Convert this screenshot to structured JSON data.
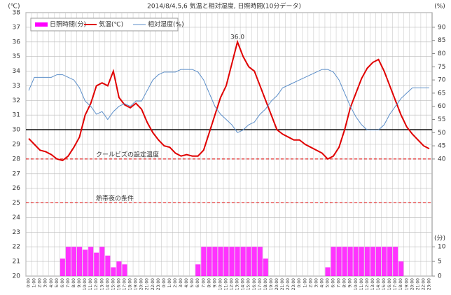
{
  "chart_data": {
    "type": "line",
    "title": "2014/8/4,5,6 気温と相対湿度, 日照時間(10分データ)",
    "y_label": "(℃)",
    "y2_label": "(%)",
    "y3_label": "(分)",
    "categories": [
      "0:00",
      "1:00",
      "2:00",
      "3:00",
      "4:00",
      "5:00",
      "6:00",
      "7:00",
      "8:00",
      "9:00",
      "10:00",
      "11:00",
      "12:00",
      "13:00",
      "14:00",
      "15:00",
      "16:00",
      "17:00",
      "18:00",
      "19:00",
      "20:00",
      "21:00",
      "22:00",
      "23:00",
      "0:00",
      "1:00",
      "2:00",
      "3:00",
      "4:00",
      "5:00",
      "6:00",
      "7:00",
      "8:00",
      "9:00",
      "10:00",
      "11:00",
      "12:00",
      "13:00",
      "14:00",
      "15:00",
      "16:00",
      "17:00",
      "18:00",
      "19:00",
      "20:00",
      "21:00",
      "22:00",
      "23:00",
      "0:00",
      "1:00",
      "2:00",
      "3:00",
      "4:00",
      "5:00",
      "6:00",
      "7:00",
      "8:00",
      "9:00",
      "10:00",
      "11:00",
      "12:00",
      "13:00",
      "14:00",
      "15:00",
      "16:00",
      "17:00",
      "18:00",
      "19:00",
      "20:00",
      "21:00",
      "22:00",
      "23:00"
    ],
    "series": [
      {
        "name": "日照時間(分)",
        "color": "#ff00ff",
        "axis": "y3",
        "kind": "bar",
        "values": [
          0,
          0,
          0,
          0,
          0,
          0,
          6,
          10,
          10,
          10,
          9,
          10,
          8,
          10,
          7,
          3,
          5,
          4,
          0,
          0,
          0,
          0,
          0,
          0,
          0,
          0,
          0,
          0,
          0,
          0,
          4,
          10,
          10,
          10,
          10,
          10,
          10,
          10,
          10,
          10,
          10,
          10,
          6,
          0,
          0,
          0,
          0,
          0,
          0,
          0,
          0,
          0,
          0,
          3,
          10,
          10,
          10,
          10,
          10,
          10,
          10,
          10,
          10,
          10,
          10,
          10,
          5,
          0,
          0,
          0,
          0,
          0
        ]
      },
      {
        "name": "気温(℃)",
        "color": "#e00000",
        "axis": "y",
        "kind": "line",
        "values": [
          29.4,
          29.0,
          28.6,
          28.5,
          28.3,
          28.0,
          27.9,
          28.2,
          28.8,
          29.5,
          31.0,
          31.8,
          33.0,
          33.2,
          33.0,
          34.0,
          32.2,
          31.7,
          31.5,
          31.8,
          31.4,
          30.5,
          29.8,
          29.3,
          28.9,
          28.8,
          28.4,
          28.2,
          28.3,
          28.2,
          28.2,
          28.6,
          29.8,
          31.0,
          32.2,
          33.0,
          34.5,
          36.0,
          35.0,
          34.3,
          34.0,
          33.0,
          32.0,
          31.0,
          30.0,
          29.7,
          29.5,
          29.3,
          29.3,
          29.0,
          28.8,
          28.6,
          28.4,
          28.0,
          28.2,
          28.8,
          30.0,
          31.5,
          32.5,
          33.5,
          34.2,
          34.6,
          34.8,
          34.0,
          33.0,
          32.0,
          31.0,
          30.2,
          29.7,
          29.3,
          28.9,
          28.7
        ]
      },
      {
        "name": "相対湿度(%)",
        "color": "#5b8ec9",
        "axis": "y2",
        "kind": "line",
        "values": [
          66,
          71,
          71,
          71,
          71,
          72,
          72,
          71,
          70,
          67,
          62,
          60,
          57,
          58,
          55,
          58,
          60,
          61,
          60,
          62,
          62,
          66,
          70,
          72,
          73,
          73,
          73,
          74,
          74,
          74,
          73,
          70,
          65,
          60,
          57,
          55,
          53,
          50,
          51,
          53,
          54,
          57,
          59,
          62,
          64,
          67,
          68,
          69,
          70,
          71,
          72,
          73,
          74,
          74,
          73,
          70,
          65,
          60,
          56,
          53,
          51,
          51,
          51,
          53,
          57,
          60,
          63,
          65,
          67,
          67,
          67,
          67
        ]
      }
    ],
    "ylim": [
      20,
      38
    ],
    "yticks": [
      20,
      21,
      22,
      23,
      24,
      25,
      26,
      27,
      28,
      29,
      30,
      31,
      32,
      33,
      34,
      35,
      36,
      37,
      38
    ],
    "y2lim": [
      -4.44,
      95.56
    ],
    "y2ticks": [
      40,
      45,
      50,
      55,
      60,
      65,
      70,
      75,
      80,
      85,
      90
    ],
    "y3lim": [
      0,
      10
    ],
    "y3ticks": [
      0,
      5,
      10
    ],
    "reference_lines": [
      {
        "value": 30,
        "color": "#000000"
      },
      {
        "value": 28,
        "color": "#e00000",
        "label": "クールビズの設定温度"
      },
      {
        "value": 25,
        "color": "#e00000",
        "label": "熱帯夜の条件"
      }
    ],
    "annotations": [
      {
        "text": "36.0",
        "x": 37,
        "y": 36.0
      }
    ],
    "grid": true
  }
}
